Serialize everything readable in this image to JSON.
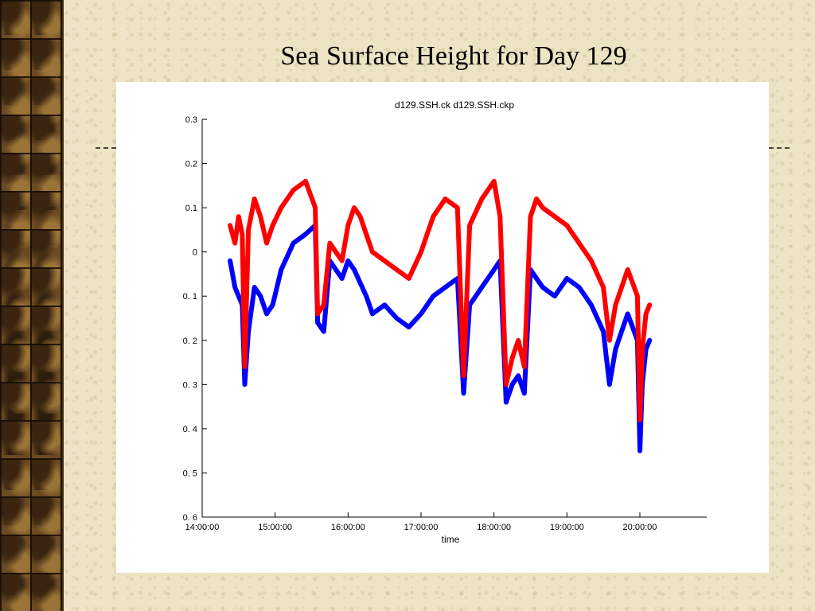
{
  "slide": {
    "title": "Sea Surface Height for Day 129"
  },
  "chart_data": {
    "type": "line",
    "title": "d129.SSH.ck d129.SSH.ckp",
    "xlabel": "time",
    "ylabel": "",
    "x_ticks": [
      "14:00:00",
      "15:00:00",
      "16:00:00",
      "17:00:00",
      "18:00:00",
      "19:00:00",
      "20:00:00"
    ],
    "y_ticks": [
      "0.3",
      "0.2",
      "0.1",
      "0",
      "0. 1",
      "0. 2",
      "0. 3",
      "0. 4",
      "0. 5",
      "0. 6"
    ],
    "y_tick_values": [
      0.3,
      0.2,
      0.1,
      0,
      -0.1,
      -0.2,
      -0.3,
      -0.4,
      -0.5,
      -0.6
    ],
    "xlim": [
      "14:00:00",
      "20:55:00"
    ],
    "ylim": [
      -0.6,
      0.3
    ],
    "grid": false,
    "series": [
      {
        "color": "#0000ff",
        "x": [
          "14:23",
          "14:27",
          "14:30",
          "14:33",
          "14:35",
          "14:38",
          "14:43",
          "14:48",
          "14:53",
          "14:58",
          "15:05",
          "15:15",
          "15:25",
          "15:33",
          "15:35",
          "15:40",
          "15:45",
          "15:50",
          "15:55",
          "16:00",
          "16:05",
          "16:10",
          "16:15",
          "16:20",
          "16:30",
          "16:40",
          "16:50",
          "17:00",
          "17:10",
          "17:20",
          "17:30",
          "17:35",
          "17:40",
          "17:50",
          "18:00",
          "18:05",
          "18:10",
          "18:15",
          "18:20",
          "18:25",
          "18:30",
          "18:35",
          "18:40",
          "18:50",
          "19:00",
          "19:10",
          "19:20",
          "19:30",
          "19:35",
          "19:40",
          "19:50",
          "19:58",
          "20:00",
          "20:02",
          "20:05",
          "20:08"
        ],
        "values": [
          -0.02,
          -0.08,
          -0.1,
          -0.12,
          -0.3,
          -0.18,
          -0.08,
          -0.1,
          -0.14,
          -0.12,
          -0.04,
          0.02,
          0.04,
          0.06,
          -0.16,
          -0.18,
          -0.02,
          -0.04,
          -0.06,
          -0.02,
          -0.04,
          -0.07,
          -0.1,
          -0.14,
          -0.12,
          -0.15,
          -0.17,
          -0.14,
          -0.1,
          -0.08,
          -0.06,
          -0.32,
          -0.12,
          -0.08,
          -0.04,
          -0.02,
          -0.34,
          -0.3,
          -0.28,
          -0.32,
          -0.04,
          -0.06,
          -0.08,
          -0.1,
          -0.06,
          -0.08,
          -0.12,
          -0.18,
          -0.3,
          -0.22,
          -0.14,
          -0.2,
          -0.45,
          -0.3,
          -0.22,
          -0.2
        ]
      },
      {
        "color": "#ff0000",
        "x": [
          "14:23",
          "14:27",
          "14:30",
          "14:33",
          "14:35",
          "14:38",
          "14:43",
          "14:48",
          "14:53",
          "14:58",
          "15:05",
          "15:15",
          "15:25",
          "15:33",
          "15:35",
          "15:40",
          "15:45",
          "15:50",
          "15:55",
          "16:00",
          "16:05",
          "16:10",
          "16:15",
          "16:20",
          "16:30",
          "16:40",
          "16:50",
          "17:00",
          "17:10",
          "17:20",
          "17:30",
          "17:35",
          "17:40",
          "17:50",
          "18:00",
          "18:05",
          "18:10",
          "18:15",
          "18:20",
          "18:25",
          "18:30",
          "18:35",
          "18:40",
          "18:50",
          "19:00",
          "19:10",
          "19:20",
          "19:30",
          "19:35",
          "19:40",
          "19:50",
          "19:58",
          "20:00",
          "20:02",
          "20:05",
          "20:08"
        ],
        "values": [
          0.06,
          0.02,
          0.08,
          0.04,
          -0.26,
          0.05,
          0.12,
          0.08,
          0.02,
          0.06,
          0.1,
          0.14,
          0.16,
          0.1,
          -0.14,
          -0.12,
          0.02,
          0.0,
          -0.02,
          0.06,
          0.1,
          0.08,
          0.04,
          0.0,
          -0.02,
          -0.04,
          -0.06,
          0.0,
          0.08,
          0.12,
          0.1,
          -0.28,
          0.06,
          0.12,
          0.16,
          0.08,
          -0.3,
          -0.24,
          -0.2,
          -0.26,
          0.08,
          0.12,
          0.1,
          0.08,
          0.06,
          0.02,
          -0.02,
          -0.08,
          -0.2,
          -0.12,
          -0.04,
          -0.1,
          -0.38,
          -0.22,
          -0.14,
          -0.12
        ]
      }
    ]
  }
}
